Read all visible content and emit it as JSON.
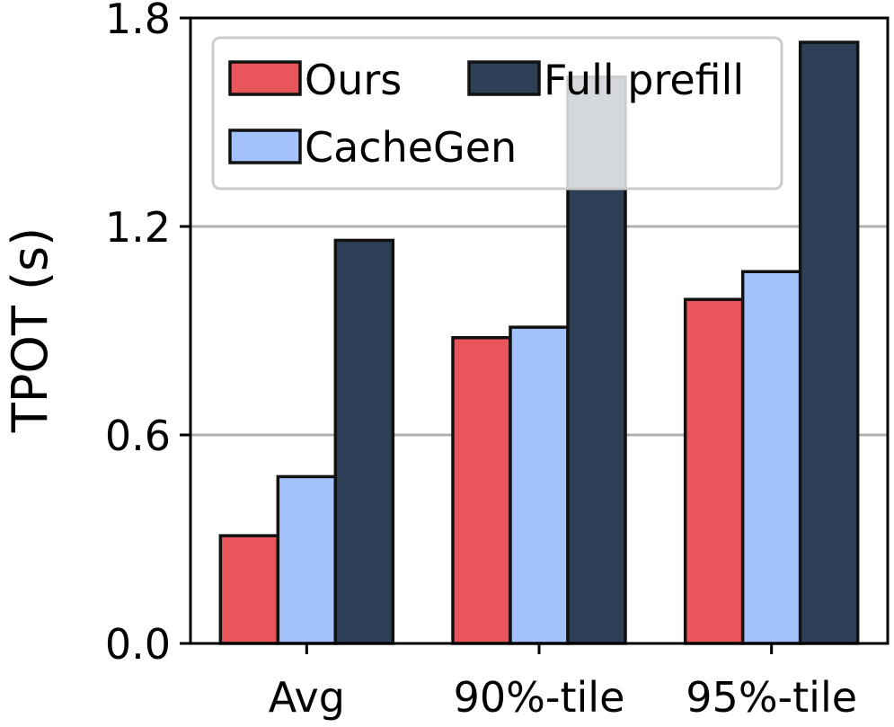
{
  "chart_data": {
    "type": "bar",
    "ylabel": "TPOT (s)",
    "ylim": [
      0,
      1.8
    ],
    "yticks": [
      "0.0",
      "0.6",
      "1.2",
      "1.8"
    ],
    "yticks_values": [
      0,
      0.6,
      1.2,
      1.8
    ],
    "grid": "horizontal",
    "legend_position": "top-left",
    "categories": [
      "Avg",
      "90%-tile",
      "95%-tile"
    ],
    "series": [
      {
        "name": "Ours",
        "color": "#e8555a",
        "values": [
          0.31,
          0.88,
          0.99
        ]
      },
      {
        "name": "CacheGen",
        "color": "#a3c1fb",
        "values": [
          0.48,
          0.91,
          1.07
        ]
      },
      {
        "name": "Full prefill",
        "color": "#2e4058",
        "values": [
          1.16,
          1.63,
          1.73
        ]
      }
    ]
  }
}
